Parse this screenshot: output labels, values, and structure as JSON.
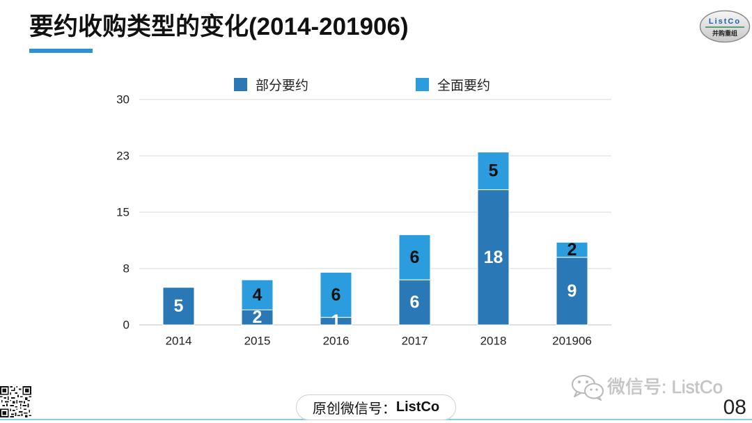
{
  "slide": {
    "title": "要约收购类型的变化(2014-201906)",
    "page_number": "08",
    "accent_color": "#2E90D5"
  },
  "logo": {
    "name": "ListCo",
    "subtitle": "并购重组"
  },
  "chart_data": {
    "type": "bar",
    "stacked": true,
    "categories": [
      "2014",
      "2015",
      "2016",
      "2017",
      "2018",
      "201906"
    ],
    "series": [
      {
        "name": "部分要约",
        "values": [
          5,
          2,
          1,
          6,
          18,
          9
        ],
        "color": "#2A78B5",
        "label_color": "#FFFFFF"
      },
      {
        "name": "全面要约",
        "values": [
          0,
          4,
          6,
          6,
          5,
          2
        ],
        "color": "#2B9CDD",
        "label_color": "#111111"
      }
    ],
    "ylim": [
      0,
      30
    ],
    "ytick_labels": [
      "0",
      "8",
      "15",
      "23",
      "30"
    ],
    "grid": true,
    "legend_position": "top"
  },
  "footer": {
    "badge_prefix": "原创微信号：",
    "badge_name": "ListCo",
    "watermark": "微信号: ListCo",
    "watermark_icon": "wechat-icon",
    "qr_icon": "qr-code-icon"
  }
}
